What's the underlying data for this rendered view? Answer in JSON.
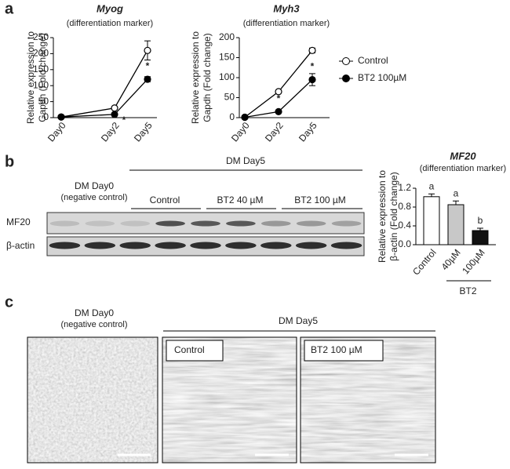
{
  "panel_labels": [
    "a",
    "b",
    "c"
  ],
  "chart_data": [
    {
      "type": "line",
      "title": "Myog",
      "subtitle": "(differentiation marker)",
      "ylabel": [
        "Relative expression to",
        "Gapdh (Fold change)"
      ],
      "categories": [
        "Day0",
        "Day2",
        "Day5"
      ],
      "series": [
        {
          "color": "#000000",
          "marker_fill": "#ffffff",
          "values": [
            2,
            30,
            210
          ],
          "errors": [
            0,
            3,
            30
          ]
        },
        {
          "color": "#000000",
          "marker_fill": "#000000",
          "values": [
            2,
            10,
            120
          ],
          "errors": [
            0,
            2,
            8
          ]
        }
      ],
      "significance": [
        null,
        "*",
        "*"
      ],
      "ylim": [
        0,
        250
      ],
      "yticks": [
        0,
        50,
        100,
        150,
        200,
        250
      ]
    },
    {
      "type": "line",
      "title": "Myh3",
      "subtitle": "(differentiation marker)",
      "ylabel": [
        "Relative expression to",
        "Gapdh (Fold change)"
      ],
      "categories": [
        "Day0",
        "Day2",
        "Day5"
      ],
      "series": [
        {
          "name": "Control",
          "color": "#000000",
          "marker_fill": "#ffffff",
          "values": [
            1,
            65,
            168
          ],
          "errors": [
            0,
            3,
            6
          ]
        },
        {
          "name": "BT2 100µM",
          "color": "#000000",
          "marker_fill": "#000000",
          "values": [
            1,
            15,
            95
          ],
          "errors": [
            0,
            3,
            15
          ]
        }
      ],
      "significance": [
        null,
        "*",
        "*"
      ],
      "ylim": [
        0,
        200
      ],
      "yticks": [
        0,
        50,
        100,
        150,
        200
      ],
      "legend": "right"
    },
    {
      "type": "bar",
      "title": "MF20",
      "subtitle": "(differentiation marker)",
      "ylabel": [
        "Relative expression to",
        "β-actin (Fold change)"
      ],
      "categories": [
        "Control",
        "40µM",
        "100µM"
      ],
      "group_label": "BT2",
      "values": [
        1.02,
        0.85,
        0.3
      ],
      "errors": [
        0.06,
        0.08,
        0.05
      ],
      "colors": [
        "#ffffff",
        "#c8c8c8",
        "#111111"
      ],
      "letters": [
        "a",
        "a",
        "b"
      ],
      "ylim": [
        0,
        1.2
      ],
      "yticks": [
        {
          "value": 0,
          "label": "0.0"
        },
        0.4,
        0.8,
        1.2
      ]
    }
  ],
  "blot": {
    "day0": "DM Day0",
    "day0_note": "(negative control)",
    "day5": "DM Day5",
    "groups": [
      "Control",
      "BT2 40 µM",
      "BT2 100 µM"
    ],
    "rows": [
      "MF20",
      "β-actin"
    ]
  },
  "micrographs": {
    "day0": "DM Day0",
    "day0_note": "(negative control)",
    "day5": "DM Day5",
    "labels": [
      "Control",
      "BT2 100 µM"
    ]
  }
}
